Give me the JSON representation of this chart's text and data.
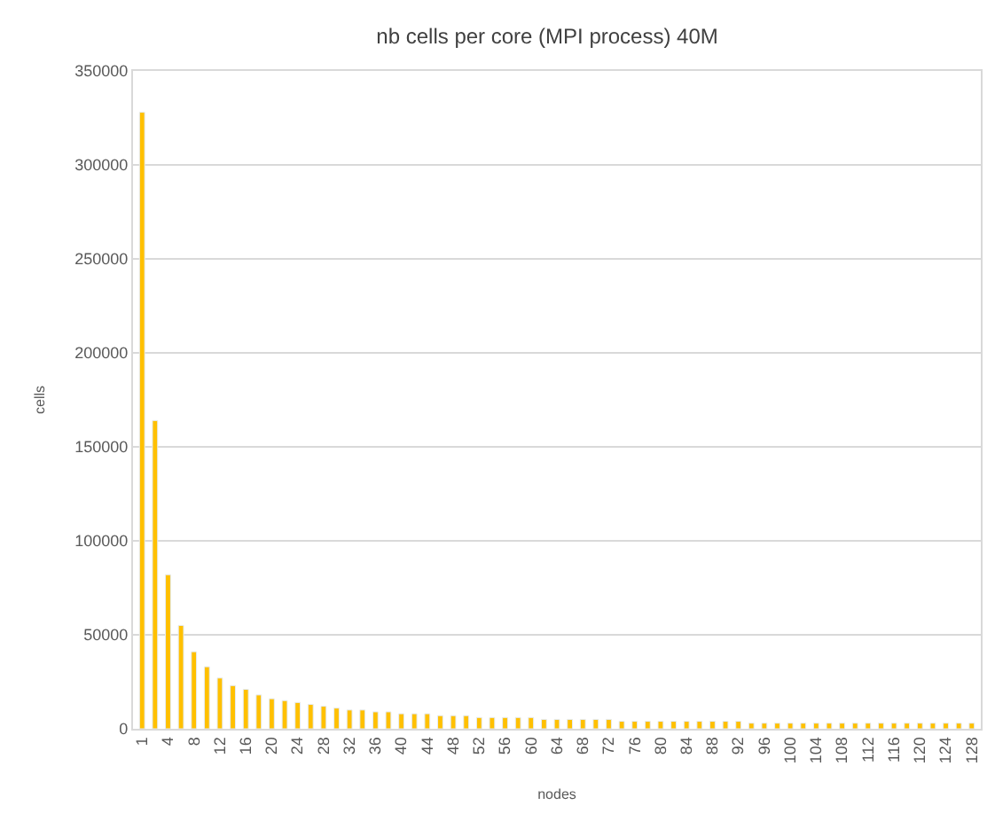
{
  "chart_data": {
    "type": "bar",
    "title": "nb cells per core (MPI process) 40M",
    "xlabel": "nodes",
    "ylabel": "cells",
    "categories": [
      "1",
      null,
      "4",
      null,
      "8",
      null,
      "12",
      null,
      "16",
      null,
      "20",
      null,
      "24",
      null,
      "28",
      null,
      "32",
      null,
      "36",
      null,
      "40",
      null,
      "44",
      null,
      "48",
      null,
      "52",
      null,
      "56",
      null,
      "60",
      null,
      "64",
      null,
      "68",
      null,
      "72",
      null,
      "76",
      null,
      "80",
      null,
      "84",
      null,
      "88",
      null,
      "92",
      null,
      "96",
      null,
      "100",
      null,
      "104",
      null,
      "108",
      null,
      "112",
      null,
      "116",
      null,
      "120",
      null,
      "124",
      null,
      "128"
    ],
    "values": [
      328000,
      164000,
      82000,
      55000,
      41000,
      33000,
      27000,
      23000,
      21000,
      18000,
      16000,
      15000,
      14000,
      13000,
      12000,
      11000,
      10000,
      10000,
      9000,
      9000,
      8000,
      8000,
      8000,
      7000,
      7000,
      7000,
      6000,
      6000,
      6000,
      6000,
      6000,
      5000,
      5000,
      5000,
      5000,
      5000,
      5000,
      4000,
      4000,
      4000,
      4000,
      4000,
      4000,
      4000,
      4000,
      4000,
      4000,
      3000,
      3000,
      3000,
      3000,
      3000,
      3000,
      3000,
      3000,
      3000,
      3000,
      3000,
      3000,
      3000,
      3000,
      3000,
      3000,
      3000,
      3000
    ],
    "color": "#ffc000",
    "ylim": [
      0,
      350000
    ],
    "yticks": [
      0,
      50000,
      100000,
      150000,
      200000,
      250000,
      300000,
      350000
    ],
    "grid": "y"
  }
}
